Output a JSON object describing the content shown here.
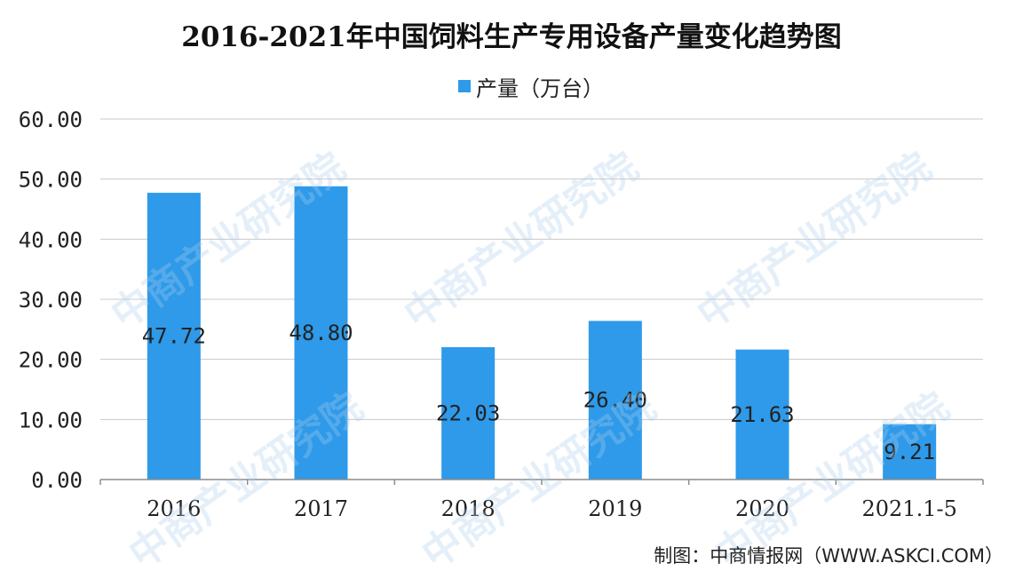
{
  "page": {
    "source_note": "制图：中商情报网（WWW.ASKCI.COM）",
    "watermark_text": "中商产业研究院"
  },
  "chart_data": {
    "type": "bar",
    "title": "2016-2021年中国饲料生产专用设备产量变化趋势图",
    "categories": [
      "2016",
      "2017",
      "2018",
      "2019",
      "2020",
      "2021.1-5"
    ],
    "series": [
      {
        "name": "产量（万台）",
        "color": "#2e9ae9",
        "values": [
          47.72,
          48.8,
          22.03,
          26.4,
          21.63,
          9.21
        ],
        "labels": [
          "47.72",
          "48.80",
          "22.03",
          "26.40",
          "21.63",
          "9.21"
        ]
      }
    ],
    "ylim": [
      0,
      60
    ],
    "yticks": [
      0,
      10,
      20,
      30,
      40,
      50,
      60
    ],
    "ytick_labels": [
      "0.00",
      "10.00",
      "20.00",
      "30.00",
      "40.00",
      "50.00",
      "60.00"
    ],
    "xlabel": "",
    "ylabel": "",
    "grid": true,
    "legend_position": "top-center"
  }
}
